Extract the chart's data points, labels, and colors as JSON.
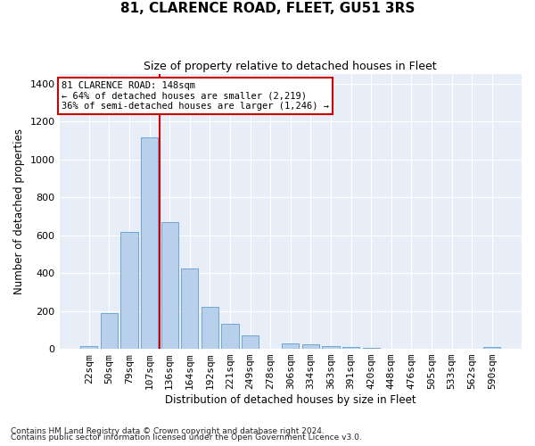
{
  "title": "81, CLARENCE ROAD, FLEET, GU51 3RS",
  "subtitle": "Size of property relative to detached houses in Fleet",
  "xlabel": "Distribution of detached houses by size in Fleet",
  "ylabel": "Number of detached properties",
  "footnote1": "Contains HM Land Registry data © Crown copyright and database right 2024.",
  "footnote2": "Contains public sector information licensed under the Open Government Licence v3.0.",
  "annotation_title": "81 CLARENCE ROAD: 148sqm",
  "annotation_line1": "← 64% of detached houses are smaller (2,219)",
  "annotation_line2": "36% of semi-detached houses are larger (1,246) →",
  "bar_color": "#b8d0ea",
  "bar_edge_color": "#6ea6d5",
  "ref_line_color": "#cc0000",
  "bg_color": "#e8eef8",
  "categories": [
    "22sqm",
    "50sqm",
    "79sqm",
    "107sqm",
    "136sqm",
    "164sqm",
    "192sqm",
    "221sqm",
    "249sqm",
    "278sqm",
    "306sqm",
    "334sqm",
    "363sqm",
    "391sqm",
    "420sqm",
    "448sqm",
    "476sqm",
    "505sqm",
    "533sqm",
    "562sqm",
    "590sqm"
  ],
  "values": [
    15,
    190,
    615,
    1115,
    670,
    425,
    220,
    130,
    70,
    0,
    30,
    25,
    15,
    10,
    5,
    0,
    0,
    0,
    0,
    0,
    10
  ],
  "ref_line_x": 3.5,
  "ylim": [
    0,
    1450
  ],
  "yticks": [
    0,
    200,
    400,
    600,
    800,
    1000,
    1200,
    1400
  ],
  "title_fontsize": 11,
  "subtitle_fontsize": 9,
  "axis_label_fontsize": 8.5,
  "tick_fontsize": 8,
  "annot_fontsize": 7.5,
  "footnote_fontsize": 6.5
}
